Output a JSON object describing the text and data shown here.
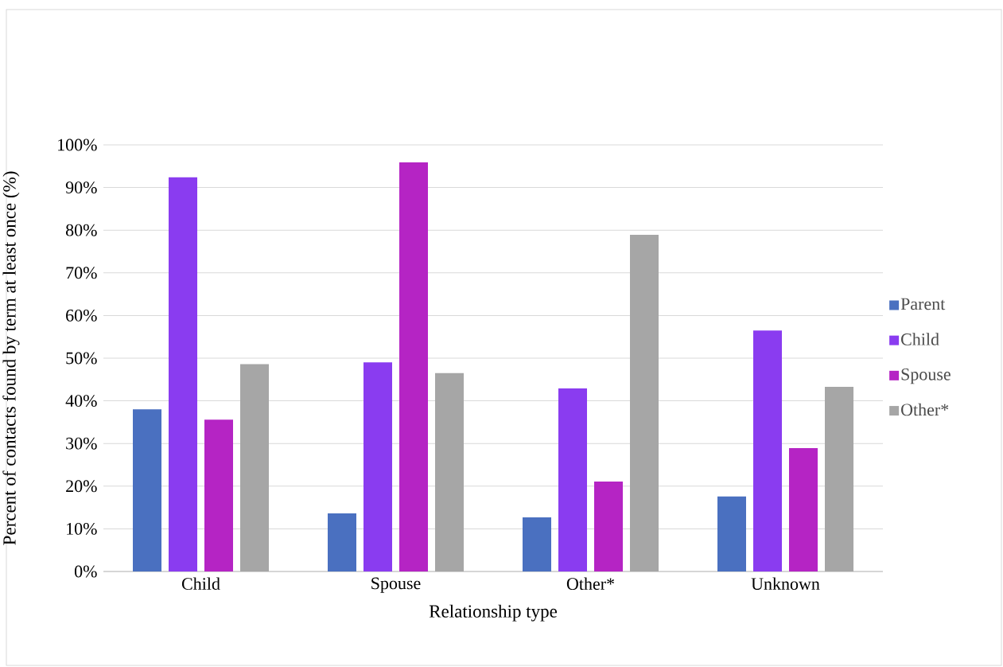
{
  "chart_data": {
    "type": "bar",
    "xlabel": "Relationship type",
    "ylabel": "Percent of contacts found by term at least once (%)",
    "categories": [
      "Child",
      "Spouse",
      "Other*",
      "Unknown"
    ],
    "series": [
      {
        "name": "Parent",
        "color": "#4a70c0",
        "values": [
          38,
          13.6,
          12.7,
          17.6
        ]
      },
      {
        "name": "Child",
        "color": "#8a3cf0",
        "values": [
          92.4,
          49,
          42.9,
          56.5
        ]
      },
      {
        "name": "Spouse",
        "color": "#b524c4",
        "values": [
          35.6,
          95.9,
          21.1,
          28.9
        ]
      },
      {
        "name": "Other*",
        "color": "#a6a6a6",
        "values": [
          48.6,
          46.5,
          78.9,
          43.3
        ]
      }
    ],
    "ylim": [
      0,
      100
    ],
    "yticks": [
      {
        "value": 0,
        "label": "0%"
      },
      {
        "value": 10,
        "label": "10%"
      },
      {
        "value": 20,
        "label": "20%"
      },
      {
        "value": 30,
        "label": "30%"
      },
      {
        "value": 40,
        "label": "40%"
      },
      {
        "value": 50,
        "label": "50%"
      },
      {
        "value": 60,
        "label": "60%"
      },
      {
        "value": 70,
        "label": "70%"
      },
      {
        "value": 80,
        "label": "80%"
      },
      {
        "value": 90,
        "label": "90%"
      },
      {
        "value": 100,
        "label": "100%"
      }
    ],
    "grid": "y",
    "legend": "right"
  }
}
